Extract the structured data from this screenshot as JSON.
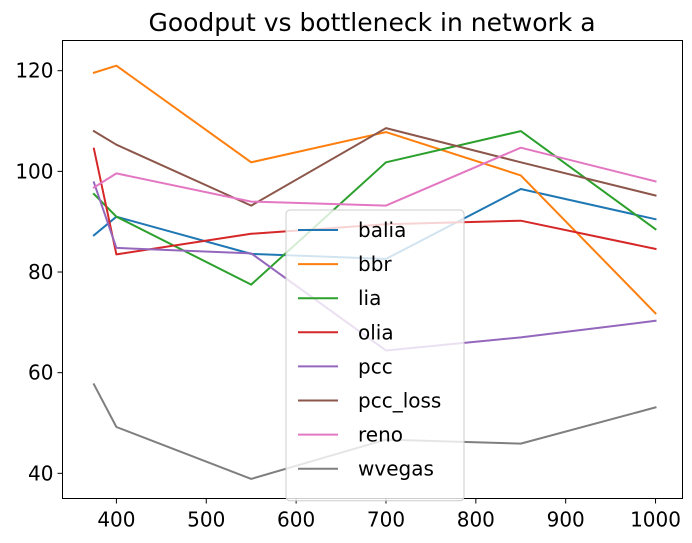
{
  "chart_data": {
    "type": "line",
    "title": "Goodput vs bottleneck in network a",
    "xlabel": "",
    "ylabel": "",
    "xlim": [
      340,
      1030
    ],
    "ylim": [
      35,
      126
    ],
    "xticks": [
      400,
      500,
      600,
      700,
      800,
      900,
      1000
    ],
    "yticks": [
      40,
      60,
      80,
      100,
      120
    ],
    "grid": false,
    "legend_position": "center",
    "series": [
      {
        "name": "balia",
        "color": "#1f77b4",
        "x": [
          375,
          400,
          550,
          700,
          850,
          1000
        ],
        "values": [
          87.3,
          91.0,
          83.6,
          82.6,
          96.5,
          90.5
        ]
      },
      {
        "name": "bbr",
        "color": "#ff7f0e",
        "x": [
          375,
          400,
          550,
          700,
          850,
          1000
        ],
        "values": [
          119.6,
          121.0,
          101.8,
          107.8,
          99.2,
          71.8
        ]
      },
      {
        "name": "lia",
        "color": "#2ca02c",
        "x": [
          375,
          400,
          550,
          700,
          850,
          1000
        ],
        "values": [
          95.5,
          91.0,
          77.5,
          101.8,
          108.0,
          88.5
        ]
      },
      {
        "name": "olia",
        "color": "#d62728",
        "x": [
          375,
          400,
          550,
          700,
          850,
          1000
        ],
        "values": [
          104.5,
          83.5,
          87.6,
          89.5,
          90.2,
          84.6
        ]
      },
      {
        "name": "pcc",
        "color": "#9467bd",
        "x": [
          375,
          400,
          550,
          700,
          850,
          1000
        ],
        "values": [
          97.8,
          84.8,
          83.7,
          64.4,
          67.0,
          70.3
        ]
      },
      {
        "name": "pcc_loss",
        "color": "#8c564b",
        "x": [
          375,
          400,
          550,
          700,
          850,
          1000
        ],
        "values": [
          108.0,
          105.3,
          93.2,
          108.6,
          101.8,
          95.2
        ]
      },
      {
        "name": "reno",
        "color": "#e377c2",
        "x": [
          375,
          400,
          550,
          700,
          850,
          1000
        ],
        "values": [
          96.8,
          99.6,
          94.0,
          93.2,
          104.7,
          98.0
        ]
      },
      {
        "name": "wvegas",
        "color": "#7f7f7f",
        "x": [
          375,
          400,
          550,
          700,
          850,
          1000
        ],
        "values": [
          57.7,
          49.2,
          38.9,
          46.7,
          45.9,
          53.1
        ]
      }
    ]
  }
}
